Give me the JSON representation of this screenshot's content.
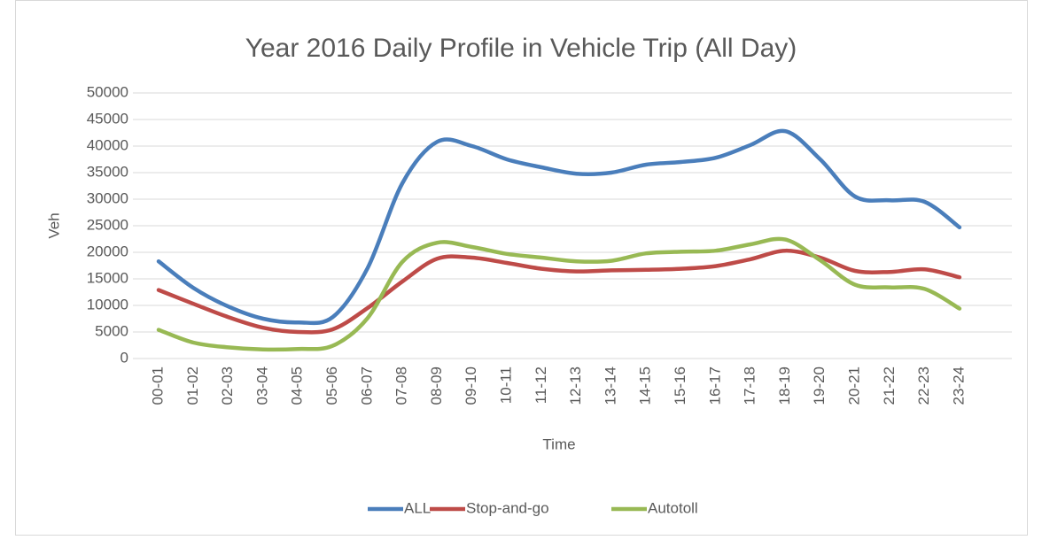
{
  "chart_data": {
    "type": "line",
    "title": "Year 2016 Daily Profile in Vehicle Trip (All Day)",
    "x_label": "Time",
    "y_label": "Veh",
    "categories": [
      "00-01",
      "01-02",
      "02-03",
      "03-04",
      "04-05",
      "05-06",
      "06-07",
      "07-08",
      "08-09",
      "09-10",
      "10-11",
      "11-12",
      "12-13",
      "13-14",
      "14-15",
      "15-16",
      "16-17",
      "17-18",
      "18-19",
      "19-20",
      "20-21",
      "21-22",
      "22-23",
      "23-24"
    ],
    "series": [
      {
        "name": "ALL",
        "color": "#4a7ebb",
        "values": [
          18300,
          13300,
          9800,
          7500,
          6800,
          7800,
          17000,
          33000,
          40800,
          40000,
          37500,
          36000,
          34800,
          35000,
          36500,
          37000,
          37800,
          40200,
          42800,
          37500,
          30500,
          29800,
          29500,
          24700
        ]
      },
      {
        "name": "Stop-and-go",
        "color": "#be4b48",
        "values": [
          12900,
          10300,
          7800,
          5800,
          5000,
          5500,
          9500,
          14500,
          18800,
          19000,
          18000,
          16900,
          16400,
          16600,
          16700,
          16900,
          17400,
          18700,
          20300,
          19000,
          16500,
          16300,
          16800,
          15300
        ]
      },
      {
        "name": "Autotoll",
        "color": "#98b954",
        "values": [
          5400,
          3000,
          2100,
          1700,
          1800,
          2400,
          7600,
          18200,
          21800,
          21000,
          19700,
          19000,
          18300,
          18400,
          19800,
          20100,
          20300,
          21500,
          22400,
          18500,
          13900,
          13400,
          13100,
          9400
        ]
      }
    ],
    "ylim": [
      0,
      50000
    ],
    "yticks": [
      0,
      5000,
      10000,
      15000,
      20000,
      25000,
      30000,
      35000,
      40000,
      45000,
      50000
    ],
    "grid": true,
    "legend": "bottom"
  }
}
